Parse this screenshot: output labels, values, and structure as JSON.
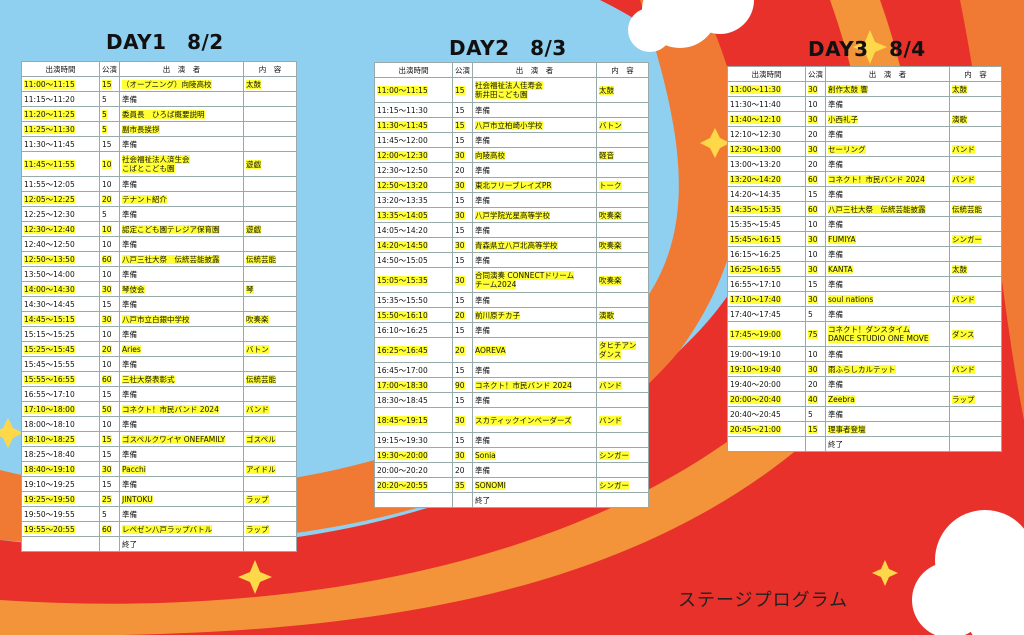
{
  "header_cols": [
    "出演時間",
    "公演",
    "出　演　者",
    "内　容"
  ],
  "days": [
    {
      "title": "DAY1　8/2",
      "rows": [
        {
          "time": "11:00～11:15",
          "min": "15",
          "name": "（オープニング）向陵高校",
          "content": "太鼓",
          "hl": true
        },
        {
          "time": "11:15～11:20",
          "min": "5",
          "name": "準備",
          "content": "",
          "hl": false
        },
        {
          "time": "11:20～11:25",
          "min": "5",
          "name": "委員長　ひろば概要説明",
          "content": "",
          "hl": true
        },
        {
          "time": "11:25～11:30",
          "min": "5",
          "name": "副市長挨拶",
          "content": "",
          "hl": true
        },
        {
          "time": "11:30～11:45",
          "min": "15",
          "name": "準備",
          "content": "",
          "hl": false
        },
        {
          "time": "11:45～11:55",
          "min": "10",
          "name": "社会福祉法人済生会\nこばとこども園",
          "content": "遊戯",
          "hl": true,
          "tall": true
        },
        {
          "time": "11:55～12:05",
          "min": "10",
          "name": "準備",
          "content": "",
          "hl": false
        },
        {
          "time": "12:05～12:25",
          "min": "20",
          "name": "テナント紹介",
          "content": "",
          "hl": true
        },
        {
          "time": "12:25～12:30",
          "min": "5",
          "name": "準備",
          "content": "",
          "hl": false
        },
        {
          "time": "12:30～12:40",
          "min": "10",
          "name": "認定こども園テレジア保育園",
          "content": "遊戯",
          "hl": true
        },
        {
          "time": "12:40～12:50",
          "min": "10",
          "name": "準備",
          "content": "",
          "hl": false
        },
        {
          "time": "12:50～13:50",
          "min": "60",
          "name": "八戸三社大祭　伝統芸能披露",
          "content": "伝統芸能",
          "hl": true
        },
        {
          "time": "13:50～14:00",
          "min": "10",
          "name": "準備",
          "content": "",
          "hl": false
        },
        {
          "time": "14:00～14:30",
          "min": "30",
          "name": "琴伎会",
          "content": "琴",
          "hl": true
        },
        {
          "time": "14:30～14:45",
          "min": "15",
          "name": "準備",
          "content": "",
          "hl": false
        },
        {
          "time": "14:45～15:15",
          "min": "30",
          "name": "八戸市立白銀中学校",
          "content": "吹奏楽",
          "hl": true
        },
        {
          "time": "15:15～15:25",
          "min": "10",
          "name": "準備",
          "content": "",
          "hl": false
        },
        {
          "time": "15:25～15:45",
          "min": "20",
          "name": "Aries",
          "content": "バトン",
          "hl": true
        },
        {
          "time": "15:45～15:55",
          "min": "10",
          "name": "準備",
          "content": "",
          "hl": false
        },
        {
          "time": "15:55～16:55",
          "min": "60",
          "name": "三社大祭表彰式",
          "content": "伝統芸能",
          "hl": true
        },
        {
          "time": "16:55～17:10",
          "min": "15",
          "name": "準備",
          "content": "",
          "hl": false
        },
        {
          "time": "17:10～18:00",
          "min": "50",
          "name": "コネクト！市民バンド 2024",
          "content": "バンド",
          "hl": true
        },
        {
          "time": "18:00～18:10",
          "min": "10",
          "name": "準備",
          "content": "",
          "hl": false
        },
        {
          "time": "18:10～18:25",
          "min": "15",
          "name": "ゴスペルクワイヤ ONEFAMILY",
          "content": "ゴスペル",
          "hl": true
        },
        {
          "time": "18:25～18:40",
          "min": "15",
          "name": "準備",
          "content": "",
          "hl": false
        },
        {
          "time": "18:40～19:10",
          "min": "30",
          "name": "Pacchi",
          "content": "アイドル",
          "hl": true
        },
        {
          "time": "19:10～19:25",
          "min": "15",
          "name": "準備",
          "content": "",
          "hl": false
        },
        {
          "time": "19:25～19:50",
          "min": "25",
          "name": "JINTOKU",
          "content": "ラップ",
          "hl": true
        },
        {
          "time": "19:50～19:55",
          "min": "5",
          "name": "準備",
          "content": "",
          "hl": false
        },
        {
          "time": "19:55～20:55",
          "min": "60",
          "name": "レペゼン八戸ラップバトル",
          "content": "ラップ",
          "hl": true
        },
        {
          "time": "",
          "min": "",
          "name": "終了",
          "content": "",
          "hl": false
        }
      ]
    },
    {
      "title": "DAY2　8/3",
      "rows": [
        {
          "time": "11:00～11:15",
          "min": "15",
          "name": "社会福祉法人佳寿会\n新井田こども園",
          "content": "太鼓",
          "hl": true,
          "tall": true
        },
        {
          "time": "11:15～11:30",
          "min": "15",
          "name": "準備",
          "content": "",
          "hl": false
        },
        {
          "time": "11:30～11:45",
          "min": "15",
          "name": "八戸市立柏崎小学校",
          "content": "バトン",
          "hl": true
        },
        {
          "time": "11:45～12:00",
          "min": "15",
          "name": "準備",
          "content": "",
          "hl": false
        },
        {
          "time": "12:00～12:30",
          "min": "30",
          "name": "向陵高校",
          "content": "軽音",
          "hl": true
        },
        {
          "time": "12:30～12:50",
          "min": "20",
          "name": "準備",
          "content": "",
          "hl": false
        },
        {
          "time": "12:50～13:20",
          "min": "30",
          "name": "東北フリーブレイズPR",
          "content": "トーク",
          "hl": true
        },
        {
          "time": "13:20～13:35",
          "min": "15",
          "name": "準備",
          "content": "",
          "hl": false
        },
        {
          "time": "13:35～14:05",
          "min": "30",
          "name": "八戸学院光星高等学校",
          "content": "吹奏楽",
          "hl": true
        },
        {
          "time": "14:05～14:20",
          "min": "15",
          "name": "準備",
          "content": "",
          "hl": false
        },
        {
          "time": "14:20～14:50",
          "min": "30",
          "name": "青森県立八戸北高等学校",
          "content": "吹奏楽",
          "hl": true
        },
        {
          "time": "14:50～15:05",
          "min": "15",
          "name": "準備",
          "content": "",
          "hl": false
        },
        {
          "time": "15:05～15:35",
          "min": "30",
          "name": "合同演奏 CONNECTドリーム\nチーム2024",
          "content": "吹奏楽",
          "hl": true,
          "tall": true
        },
        {
          "time": "15:35～15:50",
          "min": "15",
          "name": "準備",
          "content": "",
          "hl": false
        },
        {
          "time": "15:50～16:10",
          "min": "20",
          "name": "前川原チカ子",
          "content": "演歌",
          "hl": true
        },
        {
          "time": "16:10～16:25",
          "min": "15",
          "name": "準備",
          "content": "",
          "hl": false
        },
        {
          "time": "16:25～16:45",
          "min": "20",
          "name": "AOREVA",
          "content": "タヒチアン\nダンス",
          "hl": true,
          "tall": true
        },
        {
          "time": "16:45～17:00",
          "min": "15",
          "name": "準備",
          "content": "",
          "hl": false
        },
        {
          "time": "17:00～18:30",
          "min": "90",
          "name": "コネクト！市民バンド 2024",
          "content": "バンド",
          "hl": true
        },
        {
          "time": "18:30～18:45",
          "min": "15",
          "name": "準備",
          "content": "",
          "hl": false
        },
        {
          "time": "18:45～19:15",
          "min": "30",
          "name": "スカティックインベーダーズ",
          "content": "バンド",
          "hl": true,
          "tall": true
        },
        {
          "time": "19:15～19:30",
          "min": "15",
          "name": "準備",
          "content": "",
          "hl": false
        },
        {
          "time": "19:30～20:00",
          "min": "30",
          "name": "Sonia",
          "content": "シンガー",
          "hl": true
        },
        {
          "time": "20:00～20:20",
          "min": "20",
          "name": "準備",
          "content": "",
          "hl": false
        },
        {
          "time": "20:20～20:55",
          "min": "35",
          "name": "SONOMI",
          "content": "シンガー",
          "hl": true
        },
        {
          "time": "",
          "min": "",
          "name": "終了",
          "content": "",
          "hl": false
        }
      ]
    },
    {
      "title": "DAY3　8/4",
      "rows": [
        {
          "time": "11:00～11:30",
          "min": "30",
          "name": "創作太鼓 響",
          "content": "太鼓",
          "hl": true
        },
        {
          "time": "11:30～11:40",
          "min": "10",
          "name": "準備",
          "content": "",
          "hl": false
        },
        {
          "time": "11:40～12:10",
          "min": "30",
          "name": "小西礼子",
          "content": "演歌",
          "hl": true
        },
        {
          "time": "12:10～12:30",
          "min": "20",
          "name": "準備",
          "content": "",
          "hl": false
        },
        {
          "time": "12:30～13:00",
          "min": "30",
          "name": "セーリング",
          "content": "バンド",
          "hl": true
        },
        {
          "time": "13:00～13:20",
          "min": "20",
          "name": "準備",
          "content": "",
          "hl": false
        },
        {
          "time": "13:20～14:20",
          "min": "60",
          "name": "コネクト！市民バンド 2024",
          "content": "バンド",
          "hl": true
        },
        {
          "time": "14:20～14:35",
          "min": "15",
          "name": "準備",
          "content": "",
          "hl": false
        },
        {
          "time": "14:35～15:35",
          "min": "60",
          "name": "八戸三社大祭　伝統芸能披露",
          "content": "伝統芸能",
          "hl": true
        },
        {
          "time": "15:35～15:45",
          "min": "10",
          "name": "準備",
          "content": "",
          "hl": false
        },
        {
          "time": "15:45～16:15",
          "min": "30",
          "name": "FUMIYA",
          "content": "シンガー",
          "hl": true
        },
        {
          "time": "16:15～16:25",
          "min": "10",
          "name": "準備",
          "content": "",
          "hl": false
        },
        {
          "time": "16:25～16:55",
          "min": "30",
          "name": "KANTA",
          "content": "太鼓",
          "hl": true
        },
        {
          "time": "16:55～17:10",
          "min": "15",
          "name": "準備",
          "content": "",
          "hl": false
        },
        {
          "time": "17:10～17:40",
          "min": "30",
          "name": "soul nations",
          "content": "バンド",
          "hl": true
        },
        {
          "time": "17:40～17:45",
          "min": "5",
          "name": "準備",
          "content": "",
          "hl": false
        },
        {
          "time": "17:45～19:00",
          "min": "75",
          "name": "コネクト！ダンスタイム\nDANCE STUDIO ONE MOVE",
          "content": "ダンス",
          "hl": true,
          "tall": true
        },
        {
          "time": "19:00～19:10",
          "min": "10",
          "name": "準備",
          "content": "",
          "hl": false
        },
        {
          "time": "19:10～19:40",
          "min": "30",
          "name": "雨ふらしカルテット",
          "content": "バンド",
          "hl": true
        },
        {
          "time": "19:40～20:00",
          "min": "20",
          "name": "準備",
          "content": "",
          "hl": false
        },
        {
          "time": "20:00～20:40",
          "min": "40",
          "name": "Zeebra",
          "content": "ラップ",
          "hl": true
        },
        {
          "time": "20:40～20:45",
          "min": "5",
          "name": "準備",
          "content": "",
          "hl": false
        },
        {
          "time": "20:45～21:00",
          "min": "15",
          "name": "理事者登壇",
          "content": "",
          "hl": true
        },
        {
          "time": "",
          "min": "",
          "name": "終了",
          "content": "",
          "hl": false
        }
      ]
    }
  ],
  "footer_title": "ステージプログラム"
}
